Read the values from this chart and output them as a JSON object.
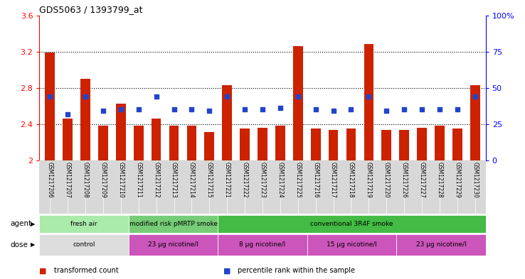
{
  "title": "GDS5063 / 1393799_at",
  "samples": [
    "GSM1217206",
    "GSM1217207",
    "GSM1217208",
    "GSM1217209",
    "GSM1217210",
    "GSM1217211",
    "GSM1217212",
    "GSM1217213",
    "GSM1217214",
    "GSM1217215",
    "GSM1217221",
    "GSM1217222",
    "GSM1217223",
    "GSM1217224",
    "GSM1217225",
    "GSM1217216",
    "GSM1217217",
    "GSM1217218",
    "GSM1217219",
    "GSM1217220",
    "GSM1217226",
    "GSM1217227",
    "GSM1217228",
    "GSM1217229",
    "GSM1217230"
  ],
  "bar_values": [
    3.19,
    2.46,
    2.9,
    2.38,
    2.63,
    2.38,
    2.46,
    2.38,
    2.38,
    2.31,
    2.83,
    2.35,
    2.36,
    2.38,
    3.26,
    2.35,
    2.34,
    2.35,
    3.28,
    2.34,
    2.34,
    2.36,
    2.38,
    2.35,
    2.83
  ],
  "dot_percentiles": [
    44,
    32,
    44,
    34,
    35,
    35,
    44,
    35,
    35,
    34,
    44,
    35,
    35,
    36,
    44,
    35,
    34,
    35,
    44,
    34,
    35,
    35,
    35,
    35,
    44
  ],
  "bar_color": "#cc2200",
  "dot_color": "#2244cc",
  "ylim_left": [
    2.0,
    3.6
  ],
  "ylim_right": [
    0,
    100
  ],
  "yticks_left": [
    2.0,
    2.4,
    2.8,
    3.2,
    3.6
  ],
  "ytick_labels_left": [
    "2",
    "2.4",
    "2.8",
    "3.2",
    "3.6"
  ],
  "yticks_right": [
    0,
    25,
    50,
    75,
    100
  ],
  "ytick_labels_right": [
    "0",
    "25",
    "50",
    "75",
    "100%"
  ],
  "hlines": [
    2.4,
    2.8,
    3.2
  ],
  "agent_groups": [
    {
      "label": "fresh air",
      "start": 0,
      "end": 5,
      "color": "#aaeaaa"
    },
    {
      "label": "modified risk pMRTP smoke",
      "start": 5,
      "end": 10,
      "color": "#77cc77"
    },
    {
      "label": "conventional 3R4F smoke",
      "start": 10,
      "end": 25,
      "color": "#44bb44"
    }
  ],
  "dose_groups": [
    {
      "label": "control",
      "start": 0,
      "end": 5,
      "color": "#dddddd"
    },
    {
      "label": "23 μg nicotine/l",
      "start": 5,
      "end": 10,
      "color": "#cc55bb"
    },
    {
      "label": "8 μg nicotine/l",
      "start": 10,
      "end": 15,
      "color": "#cc55bb"
    },
    {
      "label": "15 μg nicotine/l",
      "start": 15,
      "end": 20,
      "color": "#cc55bb"
    },
    {
      "label": "23 μg nicotine/l",
      "start": 20,
      "end": 25,
      "color": "#cc55bb"
    }
  ],
  "legend_items": [
    {
      "label": "transformed count",
      "color": "#cc2200"
    },
    {
      "label": "percentile rank within the sample",
      "color": "#2244cc"
    }
  ],
  "bg_color": "#ffffff",
  "tick_area_color": "#d8d8d8"
}
